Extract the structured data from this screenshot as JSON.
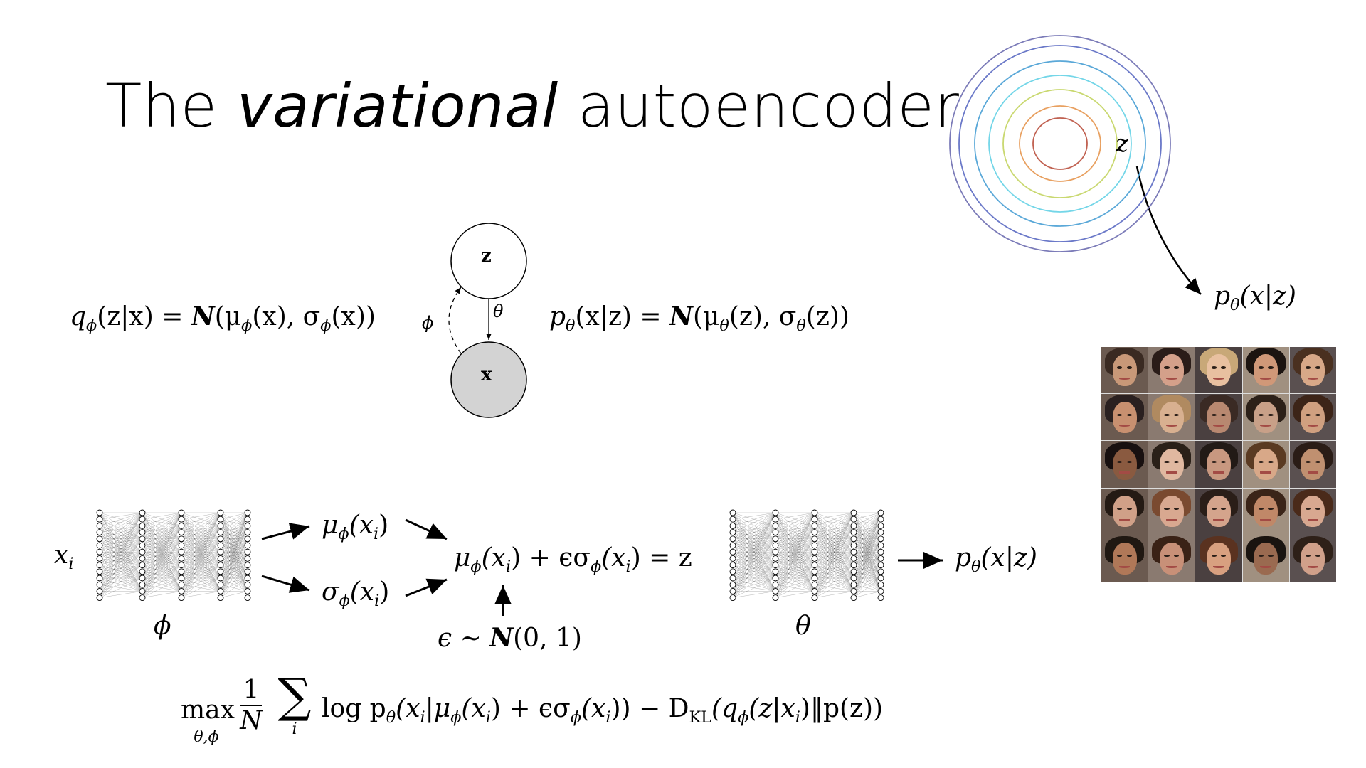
{
  "slide": {
    "title_pre": "The ",
    "title_em": "variational",
    "title_post": " autoencoder"
  },
  "graphical_model": {
    "node_z": "z",
    "node_x": "x",
    "edge_theta": "θ",
    "edge_phi": "ϕ",
    "q_eq": {
      "q": "q",
      "sub": "ϕ",
      "args": "(z|x) = ",
      "N": "N",
      "rest1": "(μ",
      "s1": "ϕ",
      "rest2": "(x), σ",
      "s2": "ϕ",
      "rest3": "(x))"
    },
    "p_eq": {
      "p": "p",
      "sub": "θ",
      "args": "(x|z) = ",
      "N": "N",
      "rest1": "(μ",
      "s1": "θ",
      "rest2": "(z), σ",
      "s2": "θ",
      "rest3": "(z))"
    }
  },
  "pipeline": {
    "input": {
      "x": "x",
      "sub": "i"
    },
    "encoder_label": "ϕ",
    "decoder_label": "θ",
    "mu": {
      "a": "μ",
      "s": "ϕ",
      "b": "(x",
      "si": "i",
      "c": ")"
    },
    "sigma": {
      "a": "σ",
      "s": "ϕ",
      "b": "(x",
      "si": "i",
      "c": ")"
    },
    "reparam": {
      "a": "μ",
      "s1": "ϕ",
      "b": "(x",
      "si1": "i",
      "c": ") + ϵσ",
      "s2": "ϕ",
      "d": "(x",
      "si2": "i",
      "e": ") = z"
    },
    "noise": {
      "a": "ϵ ∼ ",
      "N": "N",
      "b": "(0, 1)"
    },
    "output": {
      "p": "p",
      "s": "θ",
      "b": "(x|z)"
    }
  },
  "objective": {
    "max": "max",
    "max_sub": "θ,ϕ",
    "frac_num": "1",
    "frac_den": "N",
    "sum": "∑",
    "sum_sub": "i",
    "body1": "log p",
    "s_theta": "θ",
    "body2": "(x",
    "si1": "i",
    "body3": "|μ",
    "s_phi1": "ϕ",
    "body4": "(x",
    "si2": "i",
    "body5": ") + ϵσ",
    "s_phi2": "ϕ",
    "body6": "(x",
    "si3": "i",
    "body7": ")) − D",
    "s_kl": "KL",
    "body8": "(q",
    "s_phi3": "ϕ",
    "body9": "(z|x",
    "si4": "i",
    "body10": ")‖p(z))"
  },
  "latent_plot": {
    "z_label": "z",
    "out": {
      "p": "p",
      "s": "θ",
      "b": "(x|z)"
    },
    "ring_colors": [
      "#7b7bb8",
      "#6a78c8",
      "#5aa8d8",
      "#74d6e8",
      "#c9d870",
      "#e8a060",
      "#c06050"
    ]
  },
  "faces": {
    "palette": [
      [
        "#3a2a22",
        "#c89878"
      ],
      [
        "#2a1c18",
        "#d4a08a"
      ],
      [
        "#c8a878",
        "#e8c0a0"
      ],
      [
        "#1c1410",
        "#d09878"
      ],
      [
        "#4a3020",
        "#d8a888"
      ],
      [
        "#2a2020",
        "#c89070"
      ],
      [
        "#b08a60",
        "#d8b090"
      ],
      [
        "#3a2a24",
        "#b88870"
      ],
      [
        "#2c2018",
        "#c8a088"
      ],
      [
        "#3c2418",
        "#d0a080"
      ],
      [
        "#181010",
        "#8a5a40"
      ],
      [
        "#2a2018",
        "#e0b8a0"
      ],
      [
        "#221a16",
        "#c89880"
      ],
      [
        "#5a3a22",
        "#d8a888"
      ],
      [
        "#2a1c16",
        "#c09070"
      ],
      [
        "#241a14",
        "#d0a088"
      ],
      [
        "#7a4a30",
        "#d8a890"
      ],
      [
        "#2a1e18",
        "#d4a48c"
      ],
      [
        "#3a2418",
        "#c08868"
      ],
      [
        "#4a2a1a",
        "#d8a890"
      ],
      [
        "#201812",
        "#b07858"
      ],
      [
        "#3a2216",
        "#c89078"
      ],
      [
        "#5a3220",
        "#d8a080"
      ],
      [
        "#1a1410",
        "#9a6a50"
      ],
      [
        "#2e2018",
        "#d0a08a"
      ]
    ]
  }
}
